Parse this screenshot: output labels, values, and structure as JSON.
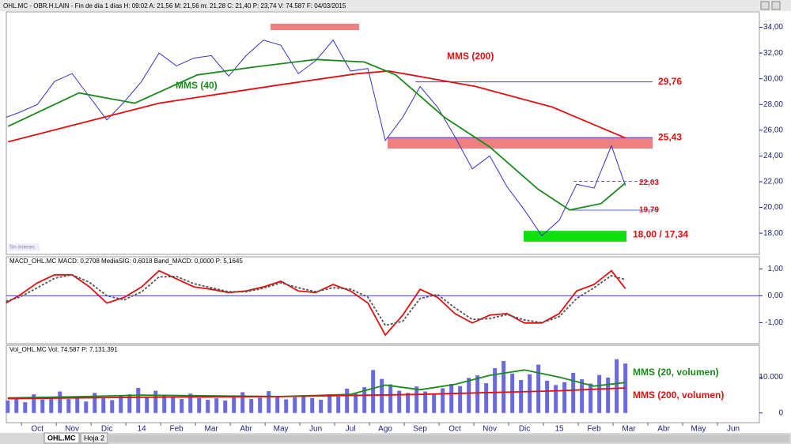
{
  "tabs": [
    "OHL.MC",
    "Hoja 2"
  ],
  "status": "Sin órdenes",
  "chart_data": [
    {
      "type": "line",
      "title": "OHL.MC - OBR.H.LAIN - Fin de día 1 días H: 09:02 A: 21,56 M: 21,56 m: 21,28 C: 21,40 P: 23,74 V: 74.587 F: 04/03/2015",
      "xlim": [
        0.11,
        21.75
      ],
      "ylim": [
        16.35,
        35.2
      ],
      "yticks": [
        {
          "value": 18,
          "label": "18,00"
        },
        {
          "value": 20,
          "label": "20,00"
        },
        {
          "value": 22,
          "label": "22,00"
        },
        {
          "value": 24,
          "label": "24,00"
        },
        {
          "value": 26,
          "label": "26,00"
        },
        {
          "value": 28,
          "label": "28,00"
        },
        {
          "value": 30,
          "label": "30,00"
        },
        {
          "value": 32,
          "label": "32,00"
        },
        {
          "value": 34,
          "label": "34,00"
        }
      ],
      "series": [
        {
          "name": "OHL.MC",
          "color": "#3333cc",
          "x": [
            0.1,
            0.5,
            1,
            1.5,
            2,
            2.5,
            3,
            3.5,
            4,
            4.5,
            5,
            5.5,
            6,
            6.5,
            7,
            7.5,
            8,
            8.5,
            9,
            9.5,
            10,
            10.5,
            11,
            11.5,
            12,
            12.5,
            13,
            13.5,
            14,
            14.5,
            15,
            15.5,
            16,
            16.5,
            17,
            17.5,
            17.9
          ],
          "values": [
            27.0,
            27.4,
            28.0,
            29.8,
            30.4,
            28.6,
            26.8,
            28.2,
            29.8,
            32.0,
            31.0,
            31.6,
            31.8,
            30.2,
            31.8,
            33.0,
            32.6,
            30.4,
            31.4,
            33.0,
            30.6,
            30.8,
            25.2,
            27.0,
            29.4,
            27.8,
            25.5,
            23.0,
            24.0,
            21.6,
            19.8,
            17.8,
            19.0,
            21.8,
            21.5,
            24.8,
            21.7
          ]
        },
        {
          "name": "MMS (200)",
          "color": "#e01010",
          "x": [
            0.16,
            4.5,
            7.9,
            10.2,
            11.1,
            13.6,
            15.8,
            17.9
          ],
          "values": [
            25.1,
            28.1,
            29.5,
            30.4,
            30.6,
            29.4,
            27.8,
            25.4
          ]
        },
        {
          "name": "MMS (40)",
          "color": "#1a8a1a",
          "x": [
            0.16,
            2.2,
            3.8,
            5.6,
            7.2,
            9.0,
            10.4,
            11.3,
            12.7,
            14.0,
            15.4,
            16.3,
            17.2,
            17.9
          ],
          "values": [
            26.3,
            28.9,
            28.1,
            30.3,
            30.9,
            31.5,
            31.3,
            30.3,
            27.0,
            24.7,
            21.4,
            19.8,
            20.3,
            21.9
          ]
        }
      ],
      "levels": [
        {
          "value": 29.76,
          "label": "29,76"
        },
        {
          "value": 25.43,
          "label": "25,43"
        },
        {
          "value": 22.03,
          "label": "22,03"
        },
        {
          "value": 19.79,
          "label": "19,79"
        }
      ],
      "support": {
        "value": 18.0,
        "value2": 17.34,
        "label": "18,00 / 17,34"
      }
    },
    {
      "type": "line",
      "title": "MACD_OHL.MC MACD: 0,2708 MediaSIG: 0,6018 Band_MACD: 0,0000 P: 5,1645",
      "xlim": [
        0.11,
        21.75
      ],
      "ylim": [
        -1.78,
        1.45
      ],
      "yticks": [
        {
          "value": 1,
          "label": "1,00"
        },
        {
          "value": 0,
          "label": "0,00"
        },
        {
          "value": -1,
          "label": "-1,00"
        }
      ],
      "series": [
        {
          "name": "MACD",
          "color": "#e01010",
          "x": [
            0.1,
            0.5,
            1,
            1.5,
            2,
            2.5,
            3,
            3.5,
            4,
            4.5,
            5,
            5.5,
            6,
            6.5,
            7,
            7.5,
            8,
            8.5,
            9,
            9.5,
            10,
            10.5,
            11,
            11.5,
            12,
            12.5,
            13,
            13.5,
            14,
            14.5,
            15,
            15.5,
            16,
            16.5,
            17,
            17.5,
            17.9
          ],
          "values": [
            -0.27,
            0.03,
            0.48,
            0.78,
            0.78,
            0.33,
            -0.27,
            -0.06,
            0.33,
            0.93,
            0.63,
            0.33,
            0.24,
            0.12,
            0.18,
            0.33,
            0.54,
            0.18,
            0.12,
            0.42,
            0.18,
            -0.27,
            -1.46,
            -0.72,
            0.24,
            -0.06,
            -0.66,
            -1.01,
            -0.72,
            -0.66,
            -1.01,
            -1.01,
            -0.66,
            0.18,
            0.42,
            0.93,
            0.27
          ]
        },
        {
          "name": "MediaSIG",
          "color": "#555555",
          "dashed": true,
          "x": [
            0.1,
            0.5,
            1,
            1.5,
            2,
            2.5,
            3,
            3.5,
            4,
            4.5,
            5,
            5.5,
            6,
            6.5,
            7,
            7.5,
            8,
            8.5,
            9,
            9.5,
            10,
            10.5,
            11,
            11.5,
            12,
            12.5,
            13,
            13.5,
            14,
            14.5,
            15,
            15.5,
            16,
            16.5,
            17,
            17.5,
            17.9
          ],
          "values": [
            -0.2,
            -0.05,
            0.3,
            0.65,
            0.78,
            0.5,
            0,
            -0.15,
            0.15,
            0.7,
            0.72,
            0.45,
            0.3,
            0.15,
            0.15,
            0.28,
            0.48,
            0.3,
            0.15,
            0.3,
            0.25,
            -0.05,
            -1.1,
            -0.95,
            -0.1,
            0.05,
            -0.45,
            -0.88,
            -0.85,
            -0.7,
            -0.9,
            -1.0,
            -0.78,
            -0.1,
            0.3,
            0.75,
            0.6
          ]
        }
      ],
      "zero_line": 0
    },
    {
      "type": "bar",
      "title": "Vol_OHL.MC Vol: 74.587 P: 7.131.391",
      "xlim": [
        0.11,
        21.75
      ],
      "ylim": [
        -2700,
        18900
      ],
      "yticks": [
        0,
        {
          "value": 10000,
          "label": "10.000"
        }
      ],
      "xticks": [
        {
          "value": 1,
          "label": "Oct"
        },
        {
          "value": 2,
          "label": "Nov"
        },
        {
          "value": 3,
          "label": "Dic"
        },
        {
          "value": 4,
          "label": "14"
        },
        {
          "value": 5,
          "label": "Feb"
        },
        {
          "value": 6,
          "label": "Mar"
        },
        {
          "value": 7,
          "label": "Abr"
        },
        {
          "value": 8,
          "label": "May"
        },
        {
          "value": 9,
          "label": "Jun"
        },
        {
          "value": 10,
          "label": "Jul"
        },
        {
          "value": 11,
          "label": "Ago"
        },
        {
          "value": 12,
          "label": "Sep"
        },
        {
          "value": 13,
          "label": "Oct"
        },
        {
          "value": 14,
          "label": "Nov"
        },
        {
          "value": 15,
          "label": "Dic"
        },
        {
          "value": 16,
          "label": "15"
        },
        {
          "value": 17,
          "label": "Feb"
        },
        {
          "value": 18,
          "label": "Mar"
        },
        {
          "value": 19,
          "label": "Abr"
        },
        {
          "value": 20,
          "label": "May"
        },
        {
          "value": 21,
          "label": "Jun"
        }
      ],
      "color": "#6a6ae0",
      "x": [
        0.15,
        0.4,
        0.65,
        0.9,
        1.15,
        1.4,
        1.65,
        1.9,
        2.15,
        2.4,
        2.65,
        2.9,
        3.15,
        3.4,
        3.65,
        3.9,
        4.15,
        4.4,
        4.65,
        4.9,
        5.15,
        5.4,
        5.65,
        5.9,
        6.15,
        6.4,
        6.65,
        6.9,
        7.15,
        7.4,
        7.65,
        7.9,
        8.15,
        8.4,
        8.65,
        8.9,
        9.15,
        9.4,
        9.65,
        9.9,
        10.15,
        10.4,
        10.65,
        10.9,
        11.15,
        11.4,
        11.65,
        11.9,
        12.15,
        12.4,
        12.65,
        12.9,
        13.15,
        13.4,
        13.65,
        13.9,
        14.15,
        14.4,
        14.65,
        14.9,
        15.15,
        15.4,
        15.65,
        15.9,
        16.15,
        16.4,
        16.65,
        16.9,
        17.15,
        17.4,
        17.65,
        17.9
      ],
      "values": [
        3500,
        4200,
        3000,
        5200,
        3800,
        4500,
        6000,
        3900,
        4400,
        3200,
        5600,
        4100,
        3600,
        4800,
        5200,
        7000,
        4300,
        6200,
        5100,
        4600,
        3900,
        5400,
        4200,
        3700,
        4100,
        3500,
        4700,
        5800,
        3900,
        4300,
        6100,
        4500,
        3800,
        4400,
        5000,
        4200,
        3700,
        5200,
        4600,
        6800,
        5400,
        7200,
        12000,
        9500,
        8000,
        6200,
        5600,
        7400,
        6000,
        5400,
        6900,
        8100,
        7500,
        9800,
        10500,
        8300,
        12500,
        14500,
        11000,
        9200,
        10800,
        13500,
        9000,
        7800,
        8600,
        11200,
        9400,
        8200,
        10600,
        9900,
        15000,
        13800
      ],
      "series": [
        {
          "name": "MMS (20, volumen)",
          "color": "#1a8a1a",
          "x": [
            0.15,
            2,
            4,
            6,
            8,
            10,
            11,
            12,
            13,
            14,
            15,
            16,
            17,
            17.9
          ],
          "values": [
            4200,
            4500,
            5000,
            4800,
            4600,
            5200,
            7800,
            6500,
            8000,
            10500,
            12000,
            10000,
            7500,
            8500
          ]
        },
        {
          "name": "MMS (200, volumen)",
          "color": "#e01010",
          "x": [
            0.15,
            4,
            8,
            12,
            16,
            17.9
          ],
          "values": [
            4000,
            4400,
            4600,
            5200,
            6200,
            7000
          ]
        }
      ]
    }
  ]
}
